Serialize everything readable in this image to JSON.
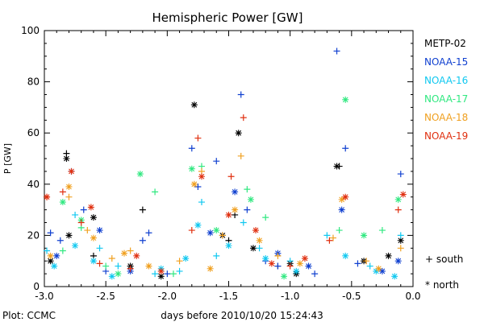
{
  "chart_data": {
    "type": "scatter",
    "title": "Hemispheric Power [GW]",
    "xlabel": "days before 2010/10/20 15:24:43",
    "ylabel": "P [GW]",
    "xlim": [
      -3.0,
      0.0
    ],
    "ylim": [
      0,
      100
    ],
    "xticks": [
      "-3.0",
      "-2.5",
      "-2.0",
      "-1.5",
      "-1.0",
      "-0.5",
      "0.0"
    ],
    "yticks": [
      "0",
      "20",
      "40",
      "60",
      "80",
      "100"
    ],
    "grid": false,
    "legend_placement": "right",
    "marker_key": {
      "south": "+ south",
      "north": "* north"
    },
    "footer": "Plot: CCMC",
    "series": [
      {
        "name": "METP-02",
        "color": "#000000",
        "south": [
          [
            -2.82,
            52
          ],
          [
            -2.2,
            30
          ],
          [
            -1.5,
            18
          ],
          [
            -1.45,
            28
          ],
          [
            -0.6,
            47
          ],
          [
            -2.6,
            12
          ],
          [
            -1.1,
            8
          ]
        ],
        "north": [
          [
            -2.82,
            50
          ],
          [
            -2.8,
            20
          ],
          [
            -2.6,
            27
          ],
          [
            -2.3,
            8
          ],
          [
            -1.78,
            71
          ],
          [
            -1.55,
            20
          ],
          [
            -1.42,
            60
          ],
          [
            -1.3,
            15
          ],
          [
            -0.95,
            5
          ],
          [
            -0.62,
            47
          ],
          [
            -0.4,
            10
          ],
          [
            -0.2,
            12
          ],
          [
            -2.95,
            10
          ],
          [
            -2.05,
            4
          ],
          [
            -1.0,
            9
          ],
          [
            -0.1,
            18
          ]
        ]
      },
      {
        "name": "NOAA-15",
        "color": "#1040d0",
        "south": [
          [
            -2.95,
            21
          ],
          [
            -2.87,
            18
          ],
          [
            -2.78,
            45
          ],
          [
            -2.68,
            30
          ],
          [
            -2.2,
            18
          ],
          [
            -2.15,
            21
          ],
          [
            -1.8,
            54
          ],
          [
            -1.75,
            39
          ],
          [
            -1.6,
            49
          ],
          [
            -1.4,
            75
          ],
          [
            -1.35,
            30
          ],
          [
            -1.1,
            8
          ],
          [
            -0.8,
            5
          ],
          [
            -0.62,
            92
          ],
          [
            -0.55,
            54
          ],
          [
            -0.45,
            9
          ],
          [
            -0.1,
            44
          ],
          [
            -2.5,
            6
          ],
          [
            -2.0,
            5
          ],
          [
            -1.2,
            10
          ]
        ],
        "north": [
          [
            -2.9,
            12
          ],
          [
            -2.55,
            22
          ],
          [
            -2.3,
            6
          ],
          [
            -1.65,
            21
          ],
          [
            -1.45,
            37
          ],
          [
            -1.1,
            13
          ],
          [
            -0.85,
            8
          ],
          [
            -0.58,
            30
          ],
          [
            -0.25,
            6
          ],
          [
            -0.12,
            10
          ]
        ]
      },
      {
        "name": "NOAA-16",
        "color": "#10c8f0",
        "south": [
          [
            -2.98,
            14
          ],
          [
            -2.75,
            28
          ],
          [
            -2.55,
            15
          ],
          [
            -2.4,
            8
          ],
          [
            -1.9,
            6
          ],
          [
            -1.72,
            33
          ],
          [
            -1.6,
            12
          ],
          [
            -1.38,
            25
          ],
          [
            -1.0,
            10
          ],
          [
            -0.7,
            20
          ],
          [
            -0.35,
            8
          ],
          [
            -0.1,
            20
          ],
          [
            -2.1,
            5
          ],
          [
            -1.25,
            15
          ]
        ],
        "north": [
          [
            -2.92,
            8
          ],
          [
            -2.6,
            10
          ],
          [
            -2.45,
            4
          ],
          [
            -2.05,
            7
          ],
          [
            -1.75,
            24
          ],
          [
            -1.5,
            16
          ],
          [
            -1.2,
            11
          ],
          [
            -0.95,
            6
          ],
          [
            -0.55,
            12
          ],
          [
            -0.3,
            6
          ],
          [
            -0.15,
            4
          ],
          [
            -2.75,
            16
          ],
          [
            -1.85,
            11
          ]
        ]
      },
      {
        "name": "NOAA-17",
        "color": "#30e880",
        "south": [
          [
            -2.7,
            23
          ],
          [
            -2.5,
            8
          ],
          [
            -2.1,
            37
          ],
          [
            -1.72,
            47
          ],
          [
            -1.35,
            38
          ],
          [
            -1.2,
            27
          ],
          [
            -0.6,
            22
          ],
          [
            -0.25,
            22
          ],
          [
            -2.85,
            14
          ],
          [
            -1.95,
            5
          ]
        ],
        "north": [
          [
            -2.85,
            33
          ],
          [
            -2.7,
            26
          ],
          [
            -2.22,
            44
          ],
          [
            -1.8,
            46
          ],
          [
            -1.6,
            22
          ],
          [
            -1.32,
            34
          ],
          [
            -0.55,
            73
          ],
          [
            -0.4,
            20
          ],
          [
            -0.12,
            34
          ],
          [
            -2.4,
            5
          ],
          [
            -1.05,
            4
          ]
        ]
      },
      {
        "name": "NOAA-18",
        "color": "#f0a020",
        "south": [
          [
            -2.8,
            35
          ],
          [
            -2.65,
            22
          ],
          [
            -2.45,
            11
          ],
          [
            -1.72,
            45
          ],
          [
            -1.55,
            20
          ],
          [
            -1.4,
            51
          ],
          [
            -1.1,
            12
          ],
          [
            -0.65,
            19
          ],
          [
            -0.38,
            10
          ],
          [
            -0.1,
            15
          ],
          [
            -2.3,
            14
          ],
          [
            -1.9,
            10
          ]
        ],
        "north": [
          [
            -2.95,
            12
          ],
          [
            -2.8,
            39
          ],
          [
            -2.6,
            19
          ],
          [
            -2.35,
            13
          ],
          [
            -1.78,
            40
          ],
          [
            -1.65,
            7
          ],
          [
            -1.45,
            30
          ],
          [
            -0.92,
            9
          ],
          [
            -0.58,
            34
          ],
          [
            -0.28,
            7
          ],
          [
            -2.15,
            8
          ],
          [
            -1.25,
            18
          ]
        ]
      },
      {
        "name": "NOAA-19",
        "color": "#e03010",
        "south": [
          [
            -2.98,
            35
          ],
          [
            -2.85,
            37
          ],
          [
            -2.7,
            25
          ],
          [
            -2.3,
            7
          ],
          [
            -1.75,
            58
          ],
          [
            -1.48,
            43
          ],
          [
            -1.38,
            66
          ],
          [
            -1.0,
            8
          ],
          [
            -0.68,
            18
          ],
          [
            -0.12,
            30
          ],
          [
            -2.55,
            9
          ],
          [
            -1.8,
            22
          ]
        ],
        "north": [
          [
            -2.98,
            35
          ],
          [
            -2.78,
            45
          ],
          [
            -2.62,
            31
          ],
          [
            -2.25,
            12
          ],
          [
            -1.72,
            43
          ],
          [
            -1.5,
            28
          ],
          [
            -1.28,
            22
          ],
          [
            -0.88,
            11
          ],
          [
            -0.55,
            35
          ],
          [
            -0.08,
            36
          ],
          [
            -2.05,
            6
          ],
          [
            -1.15,
            9
          ]
        ]
      }
    ]
  }
}
